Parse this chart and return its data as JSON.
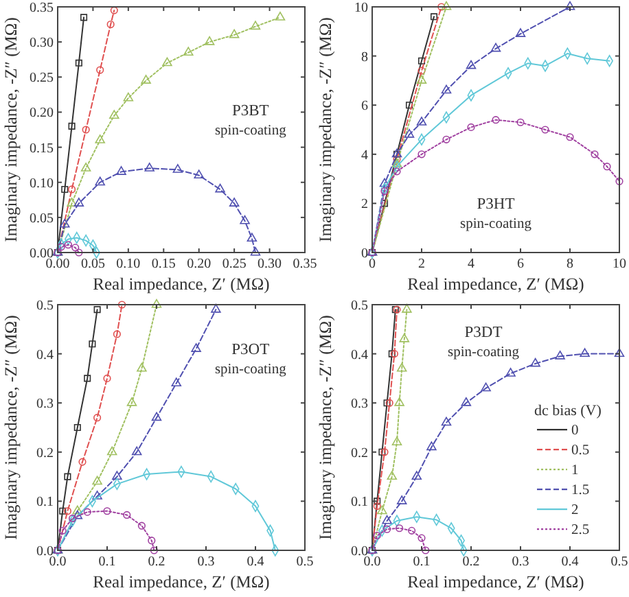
{
  "chart_data": [
    {
      "type": "line",
      "annotations": [
        "P3BT",
        "spin-coating"
      ],
      "xlabel": "Real impedance, Z′ (MΩ)",
      "ylabel": "Imaginary impedance, -Z″ (MΩ)",
      "xlim": [
        0,
        0.35
      ],
      "ylim": [
        0,
        0.35
      ],
      "xticks": [
        {
          "value": 0,
          "label": "0.00"
        },
        {
          "value": 0.05,
          "label": "0.05"
        },
        {
          "value": 0.1,
          "label": "0.10"
        },
        {
          "value": 0.15,
          "label": "0.15"
        },
        {
          "value": 0.2,
          "label": "0.20"
        },
        {
          "value": 0.25,
          "label": "0.25"
        },
        {
          "value": 0.3,
          "label": "0.30"
        },
        {
          "value": 0.35,
          "label": "0.35"
        }
      ],
      "yticks": [
        {
          "value": 0,
          "label": "0.00"
        },
        {
          "value": 0.05,
          "label": "0.05"
        },
        {
          "value": 0.1,
          "label": "0.10"
        },
        {
          "value": 0.15,
          "label": "0.15"
        },
        {
          "value": 0.2,
          "label": "0.20"
        },
        {
          "value": 0.25,
          "label": "0.25"
        },
        {
          "value": 0.3,
          "label": "0.30"
        },
        {
          "value": 0.35,
          "label": "0.35"
        }
      ],
      "series": [
        {
          "color": "#333333",
          "marker": "square",
          "line_style": "solid",
          "x": [
            0,
            0.01,
            0.02,
            0.03,
            0.037
          ],
          "values": [
            0,
            0.09,
            0.18,
            0.27,
            0.335
          ]
        },
        {
          "color": "#e05050",
          "marker": "circle",
          "line_style": "dashed",
          "x": [
            0,
            0.02,
            0.04,
            0.06,
            0.075,
            0.08
          ],
          "values": [
            0,
            0.09,
            0.175,
            0.26,
            0.325,
            0.345
          ]
        },
        {
          "color": "#a0c060",
          "marker": "triangle",
          "line_style": "dotted",
          "x": [
            0,
            0.02,
            0.04,
            0.06,
            0.08,
            0.1,
            0.125,
            0.155,
            0.185,
            0.215,
            0.25,
            0.28,
            0.315
          ],
          "values": [
            0,
            0.07,
            0.12,
            0.16,
            0.195,
            0.22,
            0.245,
            0.27,
            0.285,
            0.3,
            0.31,
            0.322,
            0.335
          ]
        },
        {
          "color": "#5050b0",
          "marker": "triangle",
          "line_style": "dashed",
          "x": [
            0,
            0.01,
            0.03,
            0.06,
            0.09,
            0.13,
            0.17,
            0.2,
            0.23,
            0.25,
            0.265,
            0.275,
            0.28
          ],
          "values": [
            0,
            0.04,
            0.07,
            0.1,
            0.115,
            0.12,
            0.118,
            0.11,
            0.09,
            0.07,
            0.045,
            0.02,
            0
          ]
        },
        {
          "color": "#60c8d8",
          "marker": "diamond",
          "line_style": "solid",
          "x": [
            0,
            0.005,
            0.015,
            0.027,
            0.04,
            0.05,
            0.055
          ],
          "values": [
            0,
            0.012,
            0.019,
            0.021,
            0.017,
            0.01,
            0
          ]
        },
        {
          "color": "#a040a0",
          "marker": "circle",
          "line_style": "dotted",
          "x": [
            0,
            0.005,
            0.015,
            0.025,
            0.03
          ],
          "values": [
            0,
            0.008,
            0.011,
            0.007,
            0
          ]
        }
      ]
    },
    {
      "type": "line",
      "annotations": [
        "P3HT",
        "spin-coating"
      ],
      "xlabel": "Real impedance, Z′ (MΩ)",
      "ylabel": "Imaginary impedance, -Z″ (MΩ)",
      "xlim": [
        0,
        10
      ],
      "ylim": [
        0,
        10
      ],
      "xticks": [
        0,
        2,
        4,
        6,
        8,
        10
      ],
      "yticks": [
        0,
        2,
        4,
        6,
        8,
        10
      ],
      "series": [
        {
          "color": "#333333",
          "marker": "square",
          "line_style": "solid",
          "x": [
            0,
            0.5,
            1,
            1.5,
            2,
            2.5
          ],
          "values": [
            0,
            2,
            4,
            6,
            7.8,
            9.6
          ]
        },
        {
          "color": "#e05050",
          "marker": "circle",
          "line_style": "dashed",
          "x": [
            0,
            1,
            2,
            2.8
          ],
          "values": [
            0,
            3.8,
            7.4,
            10
          ]
        },
        {
          "color": "#a0c060",
          "marker": "triangle",
          "line_style": "dotted",
          "x": [
            0,
            1,
            2,
            3
          ],
          "values": [
            0,
            3.6,
            7,
            10
          ]
        },
        {
          "color": "#5050b0",
          "marker": "triangle",
          "line_style": "dashed",
          "x": [
            0,
            0.5,
            1,
            1.5,
            2,
            3,
            4,
            5,
            6,
            8
          ],
          "values": [
            0,
            2.8,
            4,
            4.8,
            5.3,
            6.6,
            7.6,
            8.3,
            8.9,
            10
          ]
        },
        {
          "color": "#60c8d8",
          "marker": "diamond",
          "line_style": "solid",
          "x": [
            0,
            0.5,
            1,
            2,
            3,
            4,
            5.5,
            6.3,
            7,
            7.9,
            8.7,
            9.6
          ],
          "values": [
            0,
            2.6,
            3.5,
            4.6,
            5.5,
            6.4,
            7.3,
            7.7,
            7.6,
            8.1,
            7.9,
            7.8
          ]
        },
        {
          "color": "#a040a0",
          "marker": "circle",
          "line_style": "dotted",
          "x": [
            0,
            0.5,
            1,
            2,
            3,
            4,
            5,
            6,
            7,
            8,
            9,
            9.5,
            10
          ],
          "values": [
            0,
            2.5,
            3.3,
            4,
            4.6,
            5.1,
            5.4,
            5.3,
            5,
            4.7,
            4,
            3.5,
            2.9
          ]
        }
      ]
    },
    {
      "type": "line",
      "annotations": [
        "P3OT",
        "spin-coating"
      ],
      "xlabel": "Real impedance, Z′ (MΩ)",
      "ylabel": "Imaginary impedance, -Z″ (MΩ)",
      "xlim": [
        0,
        0.5
      ],
      "ylim": [
        0,
        0.5
      ],
      "xticks": [
        {
          "value": 0,
          "label": "0.0"
        },
        0.1,
        0.2,
        0.3,
        0.4,
        0.5
      ],
      "yticks": [
        {
          "value": 0,
          "label": "0.0"
        },
        0.1,
        0.2,
        0.3,
        0.4,
        0.5
      ],
      "series": [
        {
          "color": "#333333",
          "marker": "square",
          "line_style": "solid",
          "x": [
            0,
            0.01,
            0.02,
            0.04,
            0.06,
            0.07,
            0.08
          ],
          "values": [
            0,
            0.08,
            0.15,
            0.25,
            0.35,
            0.42,
            0.49
          ]
        },
        {
          "color": "#e05050",
          "marker": "circle",
          "line_style": "dashed",
          "x": [
            0,
            0.02,
            0.05,
            0.08,
            0.1,
            0.12,
            0.13
          ],
          "values": [
            0,
            0.08,
            0.18,
            0.27,
            0.35,
            0.44,
            0.5
          ]
        },
        {
          "color": "#a0c060",
          "marker": "triangle",
          "line_style": "dotted",
          "x": [
            0,
            0.04,
            0.08,
            0.11,
            0.15,
            0.17,
            0.2
          ],
          "values": [
            0,
            0.08,
            0.14,
            0.2,
            0.3,
            0.37,
            0.5
          ]
        },
        {
          "color": "#5050b0",
          "marker": "triangle",
          "line_style": "dashed",
          "x": [
            0,
            0.04,
            0.08,
            0.12,
            0.16,
            0.2,
            0.24,
            0.28,
            0.32
          ],
          "values": [
            0,
            0.07,
            0.11,
            0.15,
            0.2,
            0.27,
            0.34,
            0.41,
            0.49
          ]
        },
        {
          "color": "#60c8d8",
          "marker": "diamond",
          "line_style": "solid",
          "x": [
            0,
            0.03,
            0.07,
            0.12,
            0.18,
            0.25,
            0.31,
            0.36,
            0.4,
            0.43,
            0.44
          ],
          "values": [
            0,
            0.06,
            0.1,
            0.135,
            0.155,
            0.16,
            0.15,
            0.125,
            0.09,
            0.04,
            0
          ]
        },
        {
          "color": "#a040a0",
          "marker": "circle",
          "line_style": "dotted",
          "x": [
            0,
            0.01,
            0.03,
            0.06,
            0.1,
            0.14,
            0.17,
            0.19,
            0.195
          ],
          "values": [
            0,
            0.04,
            0.065,
            0.078,
            0.08,
            0.072,
            0.05,
            0.02,
            0
          ]
        }
      ]
    },
    {
      "type": "line",
      "annotations": [
        "P3DT",
        "spin-coating"
      ],
      "xlabel": "Real impedance, Z′ (MΩ)",
      "ylabel": "Imaginary impedance, -Z″ (MΩ)",
      "xlim": [
        0,
        0.5
      ],
      "ylim": [
        0,
        0.5
      ],
      "xticks": [
        {
          "value": 0,
          "label": "0.0"
        },
        0.1,
        0.2,
        0.3,
        0.4,
        0.5
      ],
      "yticks": [
        {
          "value": 0,
          "label": "0.0"
        },
        0.1,
        0.2,
        0.3,
        0.4,
        0.5
      ],
      "legend": "right",
      "legend_title": "dc bias (V)",
      "series": [
        {
          "name": "0",
          "color": "#333333",
          "marker": "square",
          "line_style": "solid",
          "x": [
            0,
            0.01,
            0.02,
            0.03,
            0.04,
            0.047
          ],
          "values": [
            0,
            0.1,
            0.2,
            0.3,
            0.4,
            0.49
          ]
        },
        {
          "name": "0.5",
          "color": "#e05050",
          "marker": "circle",
          "line_style": "dashed",
          "x": [
            0,
            0.01,
            0.025,
            0.035,
            0.045,
            0.05
          ],
          "values": [
            0,
            0.09,
            0.2,
            0.3,
            0.4,
            0.49
          ]
        },
        {
          "name": "1",
          "color": "#a0c060",
          "marker": "triangle",
          "line_style": "dotted",
          "x": [
            0,
            0.02,
            0.04,
            0.05,
            0.055,
            0.06,
            0.065,
            0.07
          ],
          "values": [
            0,
            0.08,
            0.15,
            0.22,
            0.3,
            0.37,
            0.43,
            0.49
          ]
        },
        {
          "name": "1.5",
          "color": "#5050b0",
          "marker": "triangle",
          "line_style": "dashed",
          "x": [
            0,
            0.03,
            0.06,
            0.09,
            0.12,
            0.15,
            0.19,
            0.23,
            0.28,
            0.33,
            0.38,
            0.43,
            0.5
          ],
          "values": [
            0,
            0.06,
            0.1,
            0.15,
            0.21,
            0.26,
            0.3,
            0.33,
            0.36,
            0.38,
            0.395,
            0.4,
            0.4
          ]
        },
        {
          "name": "2",
          "color": "#60c8d8",
          "marker": "diamond",
          "line_style": "solid",
          "x": [
            0,
            0.02,
            0.05,
            0.09,
            0.13,
            0.16,
            0.18,
            0.185
          ],
          "values": [
            0,
            0.04,
            0.06,
            0.068,
            0.062,
            0.045,
            0.02,
            0
          ]
        },
        {
          "name": "2.5",
          "color": "#a040a0",
          "marker": "circle",
          "line_style": "dotted",
          "x": [
            0,
            0.01,
            0.03,
            0.055,
            0.08,
            0.1,
            0.108
          ],
          "values": [
            0,
            0.03,
            0.043,
            0.045,
            0.04,
            0.025,
            0
          ]
        }
      ]
    }
  ]
}
